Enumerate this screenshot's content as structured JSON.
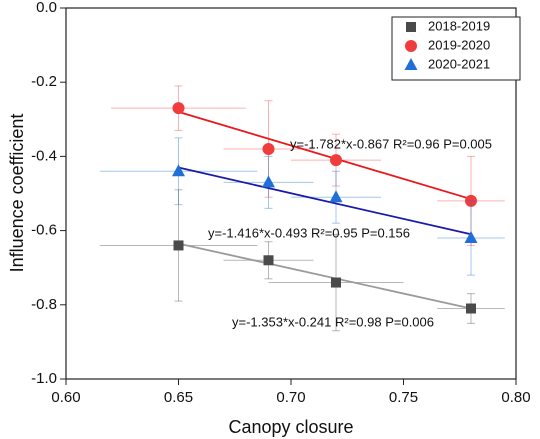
{
  "chart_data": {
    "type": "scatter",
    "x_label": "Canopy closure",
    "y_label": "Influence coefficient",
    "xlim": [
      0.6,
      0.8
    ],
    "ylim": [
      -1.0,
      0.0
    ],
    "xticks": [
      {
        "value": 0.6,
        "label": "0.60"
      },
      0.65,
      {
        "value": 0.7,
        "label": "0.70"
      },
      0.75,
      {
        "value": 0.8,
        "label": "0.80"
      }
    ],
    "yticks": [
      {
        "value": 0.0,
        "label": "0.0"
      },
      -0.2,
      -0.4,
      -0.6,
      -0.8,
      {
        "value": -1.0,
        "label": "-1.0"
      }
    ],
    "legend": "upper right",
    "series": [
      {
        "name": "2018-2019",
        "color": "#4a4a4a",
        "marker": "square",
        "fit_color": "#9a9a9a",
        "x": [
          0.65,
          0.69,
          0.72,
          0.78
        ],
        "values": [
          -0.64,
          -0.68,
          -0.74,
          -0.81
        ],
        "yerr": [
          0.15,
          0.05,
          0.13,
          0.04
        ],
        "xerr": [
          0.035,
          0.02,
          0.03,
          0.015
        ],
        "fit_x": [
          0.65,
          0.78
        ],
        "fit_y": [
          -0.635,
          -0.81
        ],
        "annotation": "y=-1.353*x-0.241  R²=0.98  P=0.006"
      },
      {
        "name": "2019-2020",
        "color": "#f03c3c",
        "marker": "circle",
        "fit_color": "#e8181c",
        "x": [
          0.65,
          0.69,
          0.72,
          0.78
        ],
        "values": [
          -0.27,
          -0.38,
          -0.41,
          -0.52
        ],
        "yerr": [
          0.06,
          0.13,
          0.07,
          0.12
        ],
        "xerr": [
          0.03,
          0.02,
          0.02,
          0.015
        ],
        "fit_x": [
          0.65,
          0.78
        ],
        "fit_y": [
          -0.28,
          -0.515
        ],
        "annotation": "y=-1.782*x-0.867  R²=0.96  P=0.005"
      },
      {
        "name": "2020-2021",
        "color": "#1f6fd6",
        "marker": "triangle",
        "fit_color": "#1a1aa8",
        "x": [
          0.65,
          0.69,
          0.72,
          0.78
        ],
        "values": [
          -0.44,
          -0.47,
          -0.51,
          -0.62
        ],
        "yerr": [
          0.09,
          0.07,
          0.07,
          0.1
        ],
        "xerr": [
          0.035,
          0.02,
          0.02,
          0.015
        ],
        "fit_x": [
          0.65,
          0.78
        ],
        "fit_y": [
          -0.43,
          -0.61
        ],
        "annotation": "y=-1.416*x-0.493  R²=0.95  P=0.156"
      }
    ]
  }
}
